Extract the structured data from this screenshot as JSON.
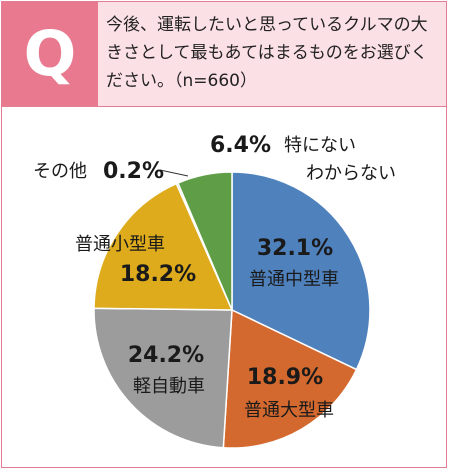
{
  "badge": "Q",
  "question": "今後、運転したいと思っているクルマの大きさとして最もあてはまるものをお選びください。（n=660）",
  "colors": {
    "badge_bg": "#e8798f",
    "header_bg": "#fbe0e6",
    "border": "#e47d93"
  },
  "chart_data": {
    "type": "pie",
    "title": "",
    "slices": [
      {
        "label": "普通中型車",
        "value": 32.1,
        "value_label": "32.1%",
        "color": "#4f81bd"
      },
      {
        "label": "普通大型車",
        "value": 18.9,
        "value_label": "18.9%",
        "color": "#d4692f"
      },
      {
        "label": "軽自動車",
        "value": 24.2,
        "value_label": "24.2%",
        "color": "#9c9c9c"
      },
      {
        "label": "普通小型車",
        "value": 18.2,
        "value_label": "18.2%",
        "color": "#ddab1c"
      },
      {
        "label": "その他",
        "value": 0.2,
        "value_label": "0.2%",
        "color": "#4f81bd"
      },
      {
        "label_lines": [
          "特にない",
          "わからない"
        ],
        "value": 6.4,
        "value_label": "6.4%",
        "color": "#5f9e46"
      }
    ]
  }
}
